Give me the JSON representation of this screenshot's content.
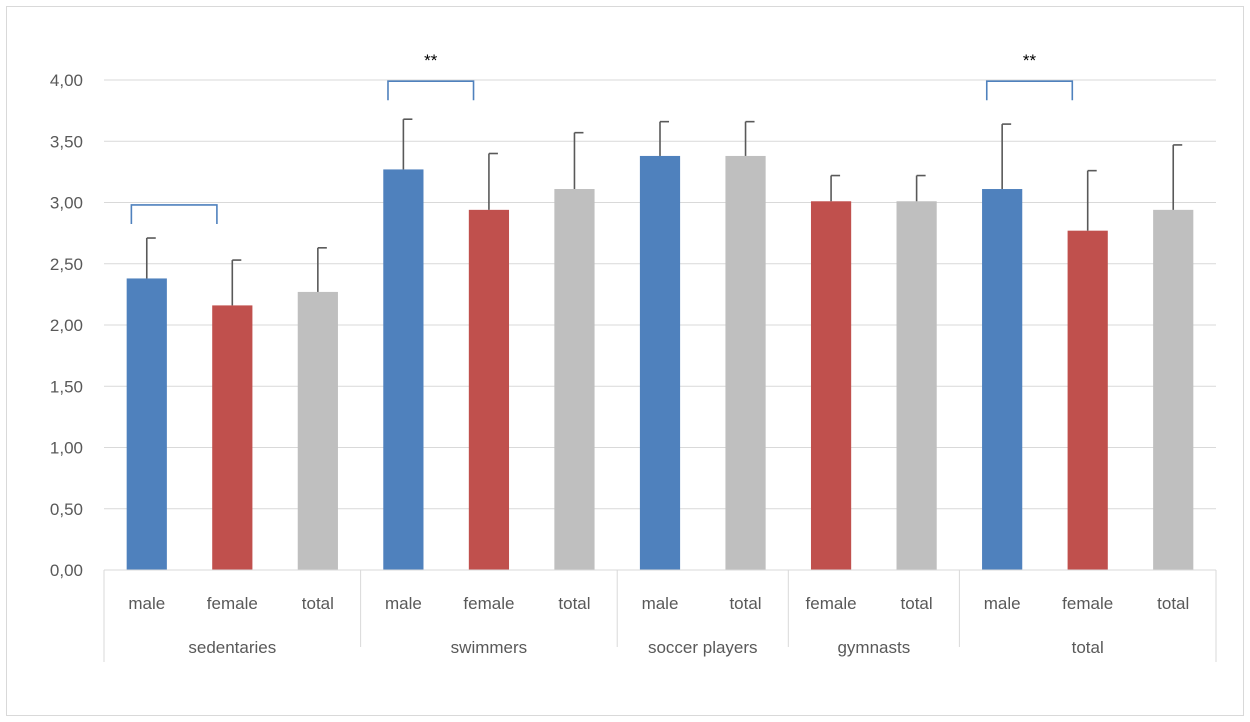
{
  "chart_data": {
    "type": "bar",
    "title": "",
    "xlabel": "",
    "ylabel": "",
    "ylim": [
      0,
      4
    ],
    "ytick_step": 0.5,
    "ytick_labels": [
      "0,00",
      "0,50",
      "1,00",
      "1,50",
      "2,00",
      "2,50",
      "3,00",
      "3,50",
      "4,00"
    ],
    "grid": true,
    "legend": "none",
    "groups": [
      {
        "label": "sedentaries",
        "bars": [
          {
            "label": "male",
            "series": "male",
            "value": 2.38,
            "error": 0.33
          },
          {
            "label": "female",
            "series": "female",
            "value": 2.16,
            "error": 0.37
          },
          {
            "label": "total",
            "series": "total",
            "value": 2.27,
            "error": 0.36
          }
        ]
      },
      {
        "label": "swimmers",
        "bars": [
          {
            "label": "male",
            "series": "male",
            "value": 3.27,
            "error": 0.41
          },
          {
            "label": "female",
            "series": "female",
            "value": 2.94,
            "error": 0.46
          },
          {
            "label": "total",
            "series": "total",
            "value": 3.11,
            "error": 0.46
          }
        ]
      },
      {
        "label": "soccer players",
        "bars": [
          {
            "label": "male",
            "series": "male",
            "value": 3.38,
            "error": 0.28
          },
          {
            "label": "total",
            "series": "total",
            "value": 3.38,
            "error": 0.28
          }
        ]
      },
      {
        "label": "gymnasts",
        "bars": [
          {
            "label": "female",
            "series": "female",
            "value": 3.01,
            "error": 0.21
          },
          {
            "label": "total",
            "series": "total",
            "value": 3.01,
            "error": 0.21
          }
        ]
      },
      {
        "label": "total",
        "bars": [
          {
            "label": "male",
            "series": "male",
            "value": 3.11,
            "error": 0.53
          },
          {
            "label": "female",
            "series": "female",
            "value": 2.77,
            "error": 0.49
          },
          {
            "label": "total",
            "series": "total",
            "value": 2.94,
            "error": 0.53
          }
        ]
      }
    ],
    "annotations": [
      {
        "from_bar": 0,
        "to_bar": 1,
        "y": 2.98,
        "label": ""
      },
      {
        "from_bar": 3,
        "to_bar": 4,
        "y": 3.99,
        "label": "**"
      },
      {
        "from_bar": 10,
        "to_bar": 11,
        "y": 3.99,
        "label": "**"
      }
    ],
    "colors": {
      "male": "#4f81bd",
      "female": "#c0504d",
      "total": "#bfbfbf",
      "error_bar": "#595959",
      "bracket": "#4f81bd",
      "grid": "#d9d9d9",
      "axis_text": "#595959"
    }
  }
}
